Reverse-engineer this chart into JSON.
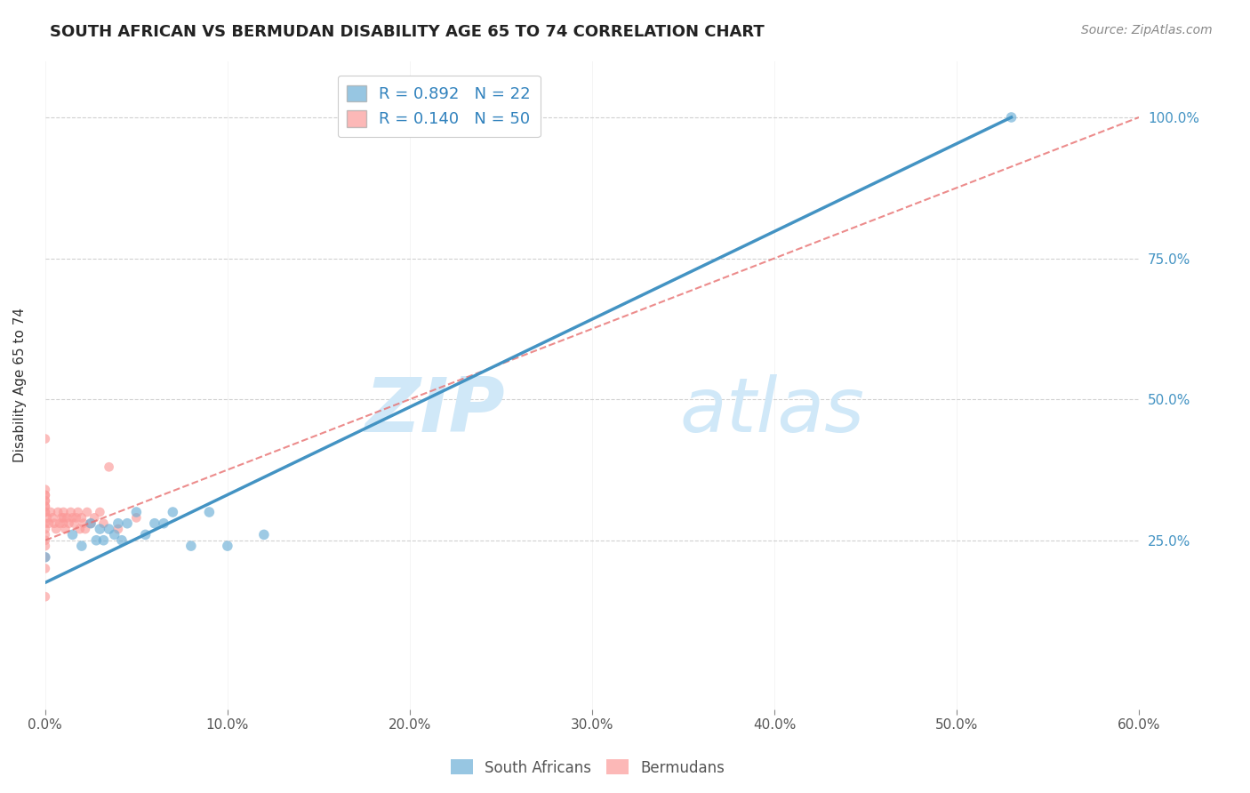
{
  "title": "SOUTH AFRICAN VS BERMUDAN DISABILITY AGE 65 TO 74 CORRELATION CHART",
  "source": "Source: ZipAtlas.com",
  "ylabel": "Disability Age 65 to 74",
  "xlim": [
    0.0,
    0.6
  ],
  "ylim": [
    -0.05,
    1.1
  ],
  "x_tick_vals": [
    0.0,
    0.1,
    0.2,
    0.3,
    0.4,
    0.5,
    0.6
  ],
  "y_tick_vals": [
    0.25,
    0.5,
    0.75,
    1.0
  ],
  "legend_entries": [
    {
      "label": "R = 0.892   N = 22",
      "color": "#6baed6"
    },
    {
      "label": "R = 0.140   N = 50",
      "color": "#fb9a99"
    }
  ],
  "south_african_x": [
    0.0,
    0.015,
    0.02,
    0.025,
    0.028,
    0.03,
    0.032,
    0.035,
    0.038,
    0.04,
    0.042,
    0.045,
    0.05,
    0.055,
    0.06,
    0.065,
    0.07,
    0.08,
    0.09,
    0.1,
    0.12,
    0.53
  ],
  "south_african_y": [
    0.22,
    0.26,
    0.24,
    0.28,
    0.25,
    0.27,
    0.25,
    0.27,
    0.26,
    0.28,
    0.25,
    0.28,
    0.3,
    0.26,
    0.28,
    0.28,
    0.3,
    0.24,
    0.3,
    0.24,
    0.26,
    1.0
  ],
  "bermudan_x": [
    0.0,
    0.0,
    0.0,
    0.0,
    0.0,
    0.0,
    0.0,
    0.0,
    0.001,
    0.002,
    0.003,
    0.004,
    0.005,
    0.006,
    0.007,
    0.008,
    0.009,
    0.01,
    0.01,
    0.01,
    0.011,
    0.012,
    0.013,
    0.014,
    0.015,
    0.016,
    0.017,
    0.018,
    0.019,
    0.02,
    0.021,
    0.022,
    0.023,
    0.025,
    0.027,
    0.03,
    0.032,
    0.035,
    0.04,
    0.05,
    0.0,
    0.0,
    0.0,
    0.0,
    0.0,
    0.0,
    0.0,
    0.0,
    0.0,
    0.0
  ],
  "bermudan_y": [
    0.3,
    0.28,
    0.27,
    0.26,
    0.25,
    0.24,
    0.22,
    0.2,
    0.29,
    0.28,
    0.3,
    0.29,
    0.28,
    0.27,
    0.3,
    0.28,
    0.29,
    0.29,
    0.3,
    0.28,
    0.27,
    0.29,
    0.28,
    0.3,
    0.29,
    0.28,
    0.29,
    0.3,
    0.27,
    0.29,
    0.28,
    0.27,
    0.3,
    0.28,
    0.29,
    0.3,
    0.28,
    0.38,
    0.27,
    0.29,
    0.32,
    0.31,
    0.33,
    0.34,
    0.32,
    0.3,
    0.31,
    0.33,
    0.43,
    0.15
  ],
  "sa_line_x": [
    0.0,
    0.53
  ],
  "sa_line_y": [
    0.175,
    1.0
  ],
  "berm_line_x": [
    0.0,
    0.6
  ],
  "berm_line_y": [
    0.25,
    1.0
  ],
  "dot_size_sa": 70,
  "dot_size_berm": 60,
  "sa_color": "#6baed6",
  "berm_color": "#fb9a99",
  "sa_line_color": "#4393c3",
  "berm_line_color": "#e87070",
  "watermark_zip": "ZIP",
  "watermark_atlas": "atlas",
  "watermark_color": "#d0e8f8"
}
